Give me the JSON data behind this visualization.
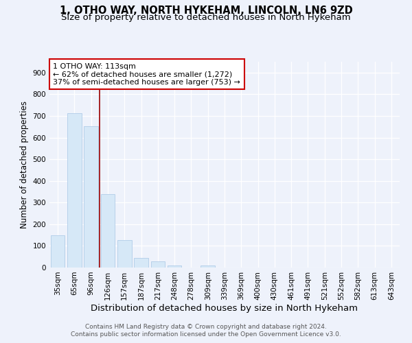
{
  "title_line1": "1, OTHO WAY, NORTH HYKEHAM, LINCOLN, LN6 9ZD",
  "title_line2": "Size of property relative to detached houses in North Hykeham",
  "xlabel": "Distribution of detached houses by size in North Hykeham",
  "ylabel": "Number of detached properties",
  "categories": [
    "35sqm",
    "65sqm",
    "96sqm",
    "126sqm",
    "157sqm",
    "187sqm",
    "217sqm",
    "248sqm",
    "278sqm",
    "309sqm",
    "339sqm",
    "369sqm",
    "400sqm",
    "430sqm",
    "461sqm",
    "491sqm",
    "521sqm",
    "552sqm",
    "582sqm",
    "613sqm",
    "643sqm"
  ],
  "values": [
    150,
    712,
    652,
    340,
    128,
    43,
    27,
    10,
    0,
    8,
    0,
    0,
    0,
    0,
    0,
    0,
    0,
    0,
    0,
    0,
    0
  ],
  "bar_color": "#d6e8f7",
  "bar_edge_color": "#b0cce8",
  "vline_x": 2.5,
  "vline_color": "#990000",
  "annotation_text": "1 OTHO WAY: 113sqm\n← 62% of detached houses are smaller (1,272)\n37% of semi-detached houses are larger (753) →",
  "annotation_box_color": "#ffffff",
  "annotation_box_edge": "#cc0000",
  "ylim": [
    0,
    950
  ],
  "yticks": [
    0,
    100,
    200,
    300,
    400,
    500,
    600,
    700,
    800,
    900
  ],
  "bg_color": "#eef2fb",
  "plot_bg_color": "#eef2fb",
  "footer": "Contains HM Land Registry data © Crown copyright and database right 2024.\nContains public sector information licensed under the Open Government Licence v3.0.",
  "title_fontsize": 10.5,
  "subtitle_fontsize": 9.5,
  "xlabel_fontsize": 9.5,
  "ylabel_fontsize": 8.5,
  "tick_fontsize": 7.5,
  "footer_fontsize": 6.5
}
